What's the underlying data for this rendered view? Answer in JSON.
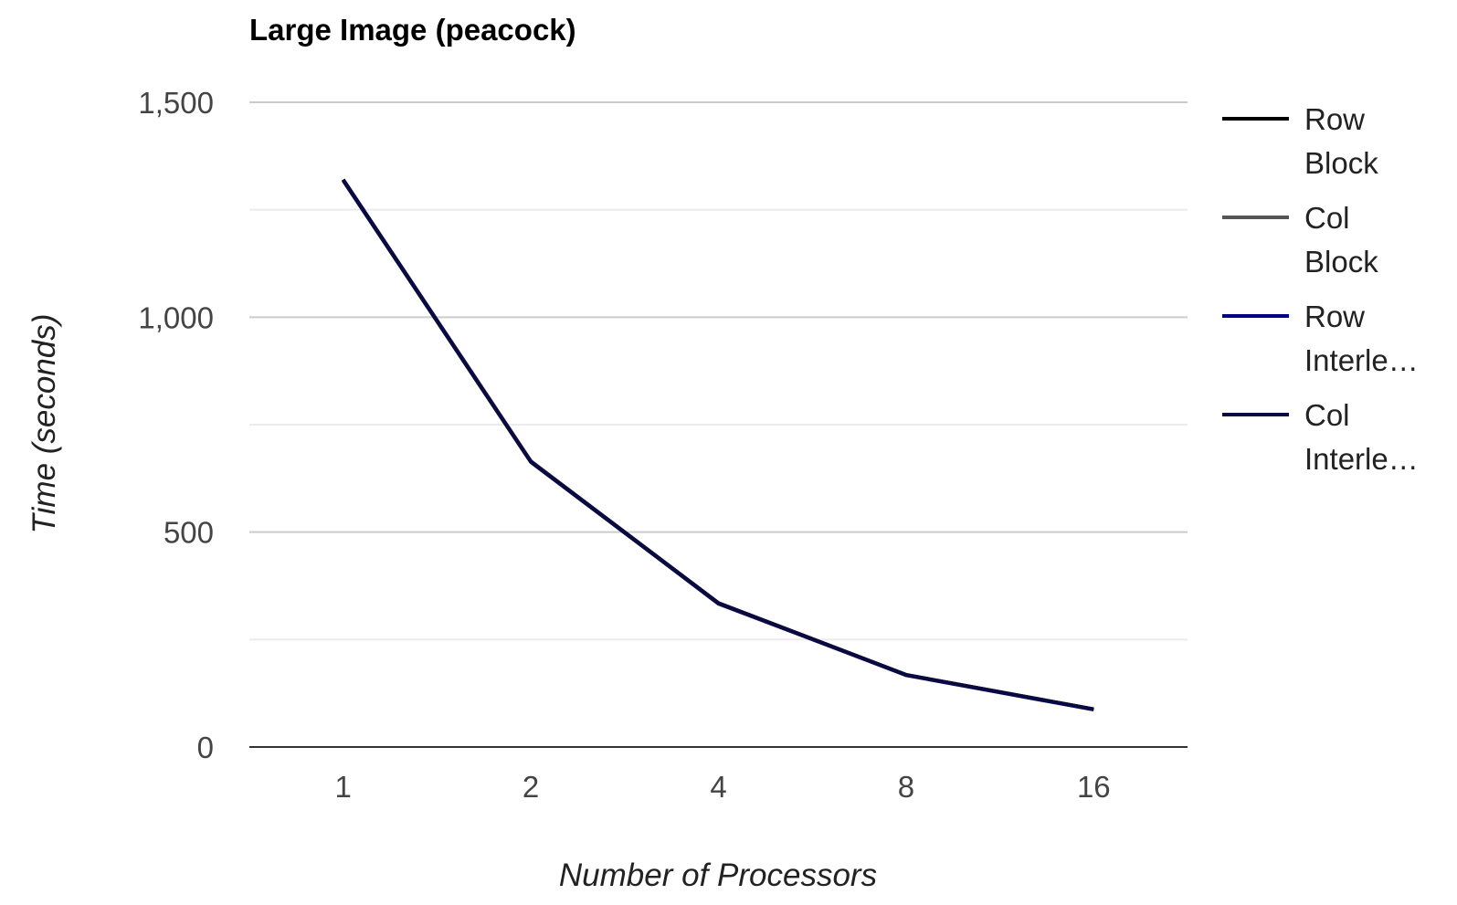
{
  "chart_data": {
    "type": "line",
    "title": "Large Image (peacock)",
    "xlabel": "Number of Processors",
    "ylabel": "Time (seconds)",
    "categories": [
      "1",
      "2",
      "4",
      "8",
      "16"
    ],
    "ylim": [
      0,
      1500
    ],
    "yticks": [
      "0",
      "500",
      "1,000",
      "1,500"
    ],
    "grid": true,
    "legend_position": "right",
    "series": [
      {
        "name": "Row Block",
        "legend_lines": [
          "Row",
          "Block"
        ],
        "color": "#000000",
        "values": [
          1320,
          665,
          335,
          168,
          88
        ]
      },
      {
        "name": "Col Block",
        "legend_lines": [
          "Col",
          "Block"
        ],
        "color": "#555555",
        "values": [
          1320,
          665,
          333,
          168,
          88
        ]
      },
      {
        "name": "Row Interleaved",
        "legend_lines": [
          "Row",
          "Interle…"
        ],
        "color": "#000080",
        "values": [
          1318,
          663,
          334,
          167,
          87
        ]
      },
      {
        "name": "Col Interleaved",
        "legend_lines": [
          "Col",
          "Interle…"
        ],
        "color": "#0a0a3c",
        "values": [
          1320,
          664,
          335,
          168,
          88
        ]
      }
    ]
  }
}
